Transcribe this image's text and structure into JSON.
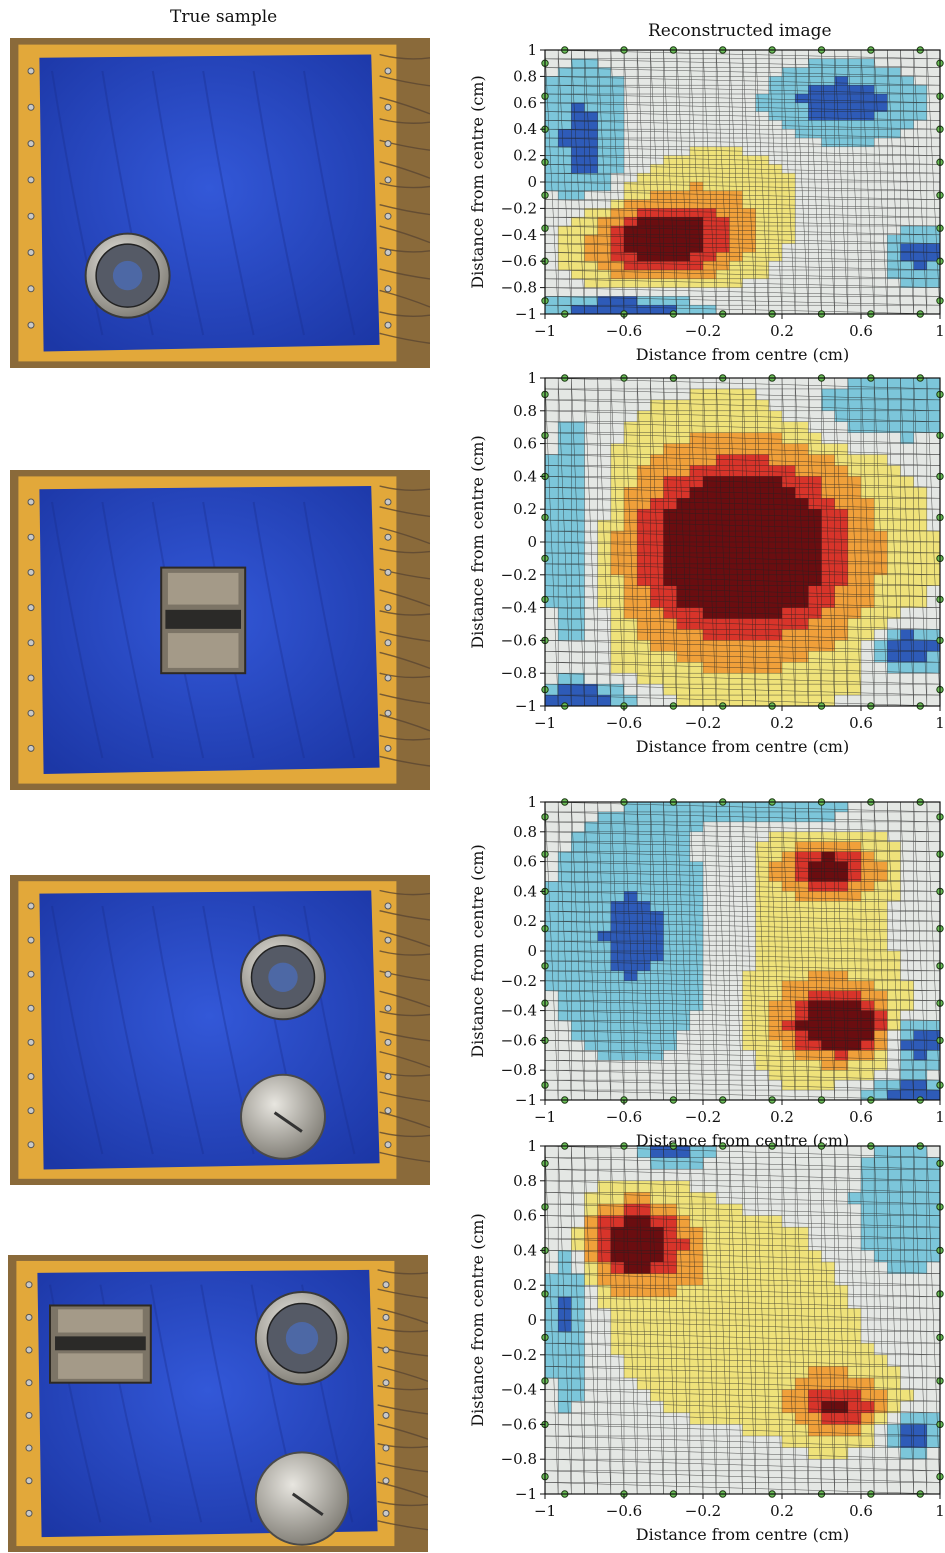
{
  "figure": {
    "left_column_title": "True sample",
    "right_column_title": "Reconstructed image"
  },
  "colors": {
    "cloth": "#2447c6",
    "frame": "#e2a83a",
    "low": "#2e5bb8",
    "lowmid": "#7cc6da",
    "mid": "#e4e7e4",
    "midhigh": "#efe27a",
    "high": "#d8342a",
    "peak": "#6a0d10",
    "electrode": "#6abf57"
  },
  "photos": [
    {
      "sample": "Single metal disc (lower left)"
    },
    {
      "sample": "Bent metal bar (centre)"
    },
    {
      "sample": "Two metal discs (right)"
    },
    {
      "sample": "Bent bar and two discs"
    }
  ],
  "chart_data": [
    {
      "type": "heatmap",
      "title": "Reconstructed image",
      "xlabel": "Distance from centre (cm)",
      "ylabel": "Distance from centre (cm)",
      "xlim": [
        -1,
        1
      ],
      "ylim": [
        -1,
        1
      ],
      "xticks": [
        "-1",
        "-0.6",
        "-0.2",
        "0.2",
        "0.6",
        "1"
      ],
      "yticks": [
        "1",
        "0.8",
        "0.6",
        "0.4",
        "0.2",
        "0",
        "-0.2",
        "-0.4",
        "-0.6",
        "-0.8",
        "-1"
      ],
      "grid": true,
      "blobs": [
        {
          "x": -0.42,
          "y": -0.45,
          "sx": 0.28,
          "sy": 0.22,
          "amp": 1.0
        },
        {
          "x": -0.1,
          "y": -0.1,
          "sx": 0.3,
          "sy": 0.3,
          "amp": 0.25
        }
      ],
      "negatives": [
        {
          "x": 0.5,
          "y": 0.6,
          "sx": 0.25,
          "sy": 0.2,
          "amp": 0.5
        },
        {
          "x": -0.8,
          "y": 0.3,
          "sx": 0.15,
          "sy": 0.4,
          "amp": 0.45
        },
        {
          "x": -0.6,
          "y": -0.95,
          "sx": 0.3,
          "sy": 0.07,
          "amp": 0.6
        },
        {
          "x": 0.9,
          "y": -0.55,
          "sx": 0.12,
          "sy": 0.15,
          "amp": 0.45
        }
      ]
    },
    {
      "type": "heatmap",
      "title": "",
      "xlabel": "Distance from centre (cm)",
      "ylabel": "Distance from centre (cm)",
      "xlim": [
        -1,
        1
      ],
      "ylim": [
        -1,
        1
      ],
      "xticks": [
        "-1",
        "-0.6",
        "-0.2",
        "0.2",
        "0.6",
        "1"
      ],
      "yticks": [
        "1",
        "0.8",
        "0.6",
        "0.4",
        "0.2",
        "0",
        "-0.2",
        "-0.4",
        "-0.6",
        "-0.8",
        "-1"
      ],
      "grid": true,
      "blobs": [
        {
          "x": 0.0,
          "y": 0.0,
          "sx": 0.4,
          "sy": 0.42,
          "amp": 1.0
        },
        {
          "x": 0.0,
          "y": -0.2,
          "sx": 0.55,
          "sy": 0.55,
          "amp": 0.35
        }
      ],
      "negatives": [
        {
          "x": -0.85,
          "y": 0.0,
          "sx": 0.12,
          "sy": 0.5,
          "amp": 0.5
        },
        {
          "x": 0.85,
          "y": -0.65,
          "sx": 0.12,
          "sy": 0.1,
          "amp": 0.7
        },
        {
          "x": -0.8,
          "y": -0.95,
          "sx": 0.2,
          "sy": 0.06,
          "amp": 0.6
        },
        {
          "x": 0.7,
          "y": 0.8,
          "sx": 0.3,
          "sy": 0.15,
          "amp": 0.4
        }
      ]
    },
    {
      "type": "heatmap",
      "title": "",
      "xlabel": "Distance from centre (cm)",
      "ylabel": "Distance from centre (cm)",
      "xlim": [
        -1,
        1
      ],
      "ylim": [
        -1,
        1
      ],
      "xticks": [
        "-1",
        "-0.6",
        "-0.2",
        "0.2",
        "0.6",
        "1"
      ],
      "yticks": [
        "1",
        "0.8",
        "0.6",
        "0.4",
        "0.2",
        "0",
        "-0.2",
        "-0.4",
        "-0.6",
        "-0.8",
        "-1"
      ],
      "grid": true,
      "blobs": [
        {
          "x": 0.45,
          "y": 0.55,
          "sx": 0.17,
          "sy": 0.12,
          "amp": 0.8
        },
        {
          "x": 0.5,
          "y": -0.5,
          "sx": 0.2,
          "sy": 0.16,
          "amp": 1.0
        },
        {
          "x": 0.35,
          "y": 0.0,
          "sx": 0.3,
          "sy": 0.65,
          "amp": 0.3
        }
      ],
      "negatives": [
        {
          "x": -0.55,
          "y": 0.1,
          "sx": 0.3,
          "sy": 0.55,
          "amp": 0.4
        },
        {
          "x": 0.88,
          "y": -0.6,
          "sx": 0.1,
          "sy": 0.12,
          "amp": 0.7
        },
        {
          "x": 0.85,
          "y": -0.95,
          "sx": 0.15,
          "sy": 0.06,
          "amp": 0.6
        },
        {
          "x": 0.2,
          "y": 0.95,
          "sx": 0.3,
          "sy": 0.08,
          "amp": 0.4
        }
      ]
    },
    {
      "type": "heatmap",
      "title": "",
      "xlabel": "Distance from centre (cm)",
      "ylabel": "Distance from centre (cm)",
      "xlim": [
        -1,
        1
      ],
      "ylim": [
        -1,
        1
      ],
      "xticks": [
        "-1",
        "-0.6",
        "-0.2",
        "0.2",
        "0.6",
        "1"
      ],
      "yticks": [
        "1",
        "0.8",
        "0.6",
        "0.4",
        "0.2",
        "0",
        "-0.2",
        "-0.4",
        "-0.6",
        "-0.8",
        "-1"
      ],
      "grid": true,
      "blobs": [
        {
          "x": -0.55,
          "y": 0.45,
          "sx": 0.2,
          "sy": 0.17,
          "amp": 1.0
        },
        {
          "x": 0.5,
          "y": -0.5,
          "sx": 0.17,
          "sy": 0.13,
          "amp": 0.75
        },
        {
          "x": 0.0,
          "y": 0.0,
          "sx": 0.5,
          "sy": 0.45,
          "amp": 0.3
        }
      ],
      "negatives": [
        {
          "x": -0.88,
          "y": 0.1,
          "sx": 0.08,
          "sy": 0.45,
          "amp": 0.45
        },
        {
          "x": 0.85,
          "y": -0.65,
          "sx": 0.1,
          "sy": 0.08,
          "amp": 0.6
        },
        {
          "x": -0.35,
          "y": 0.95,
          "sx": 0.12,
          "sy": 0.05,
          "amp": 0.55
        },
        {
          "x": 0.8,
          "y": 0.6,
          "sx": 0.2,
          "sy": 0.3,
          "amp": 0.35
        }
      ]
    }
  ]
}
